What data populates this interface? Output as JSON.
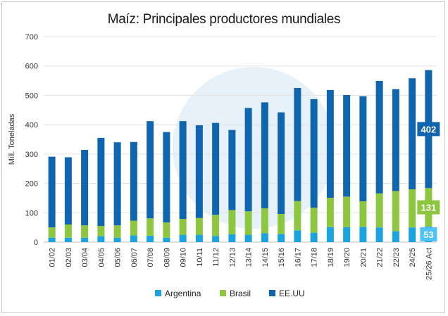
{
  "chart_data": {
    "type": "bar",
    "stacked": true,
    "title": "Maíz: Principales productores mundiales",
    "ylabel": "Mill. Toneladas",
    "xlabel": "",
    "ylim": [
      0,
      700
    ],
    "yticks": [
      0,
      100,
      200,
      300,
      400,
      500,
      600,
      700
    ],
    "grid": true,
    "legend_position": "bottom",
    "categories": [
      "01/02",
      "02/03",
      "03/04",
      "04/05",
      "05/06",
      "06/07",
      "07/08",
      "08/09",
      "09/10",
      "10/11",
      "11/12",
      "12/13",
      "13/14",
      "14/15",
      "15/16",
      "16/17",
      "17/18",
      "18/19",
      "19/20",
      "20/21",
      "21/22",
      "22/23",
      "24/25",
      "25/26 Act"
    ],
    "series": [
      {
        "name": "Argentina",
        "color": "#1ba3e0",
        "values": [
          15,
          15,
          15,
          20,
          15,
          23,
          22,
          15,
          25,
          25,
          21,
          27,
          25,
          30,
          28,
          40,
          32,
          51,
          51,
          52,
          50,
          37,
          50,
          53
        ]
      },
      {
        "name": "Brasil",
        "color": "#8dc63f",
        "values": [
          35,
          45,
          42,
          35,
          42,
          50,
          59,
          52,
          54,
          57,
          72,
          82,
          80,
          85,
          68,
          100,
          85,
          100,
          104,
          87,
          116,
          137,
          130,
          131
        ]
      },
      {
        "name": "EE.UU",
        "color": "#0f65b0",
        "values": [
          241,
          229,
          257,
          300,
          283,
          268,
          331,
          308,
          333,
          316,
          313,
          273,
          352,
          361,
          346,
          385,
          370,
          367,
          346,
          358,
          383,
          347,
          378,
          402
        ]
      }
    ],
    "annotations": [
      {
        "category": "25/26 Act",
        "series": "EE.UU",
        "text": "402",
        "color": "#0f65b0"
      },
      {
        "category": "25/26 Act",
        "series": "Brasil",
        "text": "131",
        "color": "#8dc63f"
      },
      {
        "category": "25/26 Act",
        "series": "Argentina",
        "text": "53",
        "color": "#4fc3f7"
      }
    ]
  }
}
